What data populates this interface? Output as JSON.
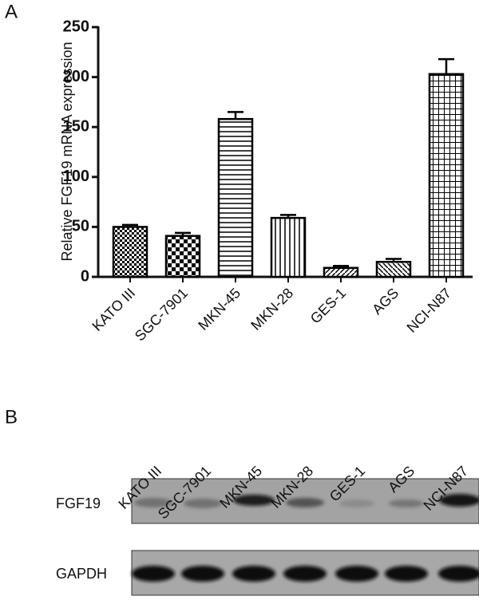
{
  "panel_labels": [
    "A",
    "B"
  ],
  "chart_data": {
    "type": "bar",
    "y_label": "Relative FGF19 mRNA expression",
    "categories": [
      "KATO III",
      "SGC-7901",
      "MKN-45",
      "MKN-28",
      "GES-1",
      "AGS",
      "NCI-N87"
    ],
    "values": [
      50,
      41,
      158,
      59,
      9,
      15,
      203
    ],
    "errors": [
      2,
      3,
      7,
      3,
      2,
      3,
      15
    ],
    "color": "#000000",
    "ylim": [
      0,
      250
    ],
    "yticks": [
      0,
      50,
      100,
      150,
      200,
      250
    ],
    "grid": false
  },
  "blot": {
    "lanes": [
      "KATO III",
      "SGC-7901",
      "MKN-45",
      "MKN-28",
      "GES-1",
      "AGS",
      "NCI-N87"
    ],
    "rows": [
      "FGF19",
      "GAPDH"
    ]
  }
}
